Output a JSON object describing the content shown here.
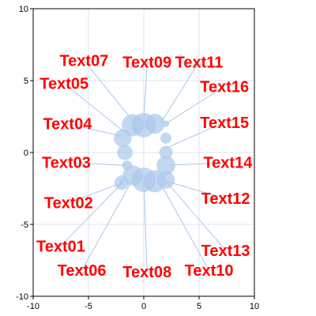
{
  "chart_data": {
    "type": "scatter",
    "title": "",
    "xlabel": "",
    "ylabel": "",
    "xlim": [
      -10,
      10
    ],
    "ylim": [
      -10,
      10
    ],
    "xticks": [
      -10,
      -5,
      0,
      5,
      10
    ],
    "yticks": [
      -10,
      -5,
      0,
      5,
      10
    ],
    "grid": true,
    "colors": {
      "bubble": "#a9c8ea",
      "label": "#ff0000",
      "leader": "#a9c8ea",
      "grid": "#dce6ee"
    },
    "points": [
      {
        "x": -2.0,
        "y": -2.1,
        "size": 0.65
      },
      {
        "x": -1.0,
        "y": -1.6,
        "size": 0.9
      },
      {
        "x": 0.0,
        "y": -1.9,
        "size": 1.1
      },
      {
        "x": 1.0,
        "y": -2.0,
        "size": 1.0
      },
      {
        "x": 2.0,
        "y": -1.9,
        "size": 0.8
      },
      {
        "x": -1.9,
        "y": 1.0,
        "size": 0.8
      },
      {
        "x": -1.0,
        "y": 1.9,
        "size": 1.0
      },
      {
        "x": 0.0,
        "y": 1.9,
        "size": 1.1
      },
      {
        "x": 1.0,
        "y": 2.0,
        "size": 0.9
      },
      {
        "x": 2.0,
        "y": 2.0,
        "size": 0.3
      },
      {
        "x": -1.7,
        "y": 0.0,
        "size": 0.7
      },
      {
        "x": 2.0,
        "y": 0.0,
        "size": 0.6
      },
      {
        "x": -1.5,
        "y": -0.9,
        "size": 0.45
      },
      {
        "x": 2.0,
        "y": -0.9,
        "size": 0.85
      },
      {
        "x": -2.0,
        "y": -2.0,
        "size": 0.2
      },
      {
        "x": 2.0,
        "y": 1.0,
        "size": 0.5
      }
    ],
    "annotations": [
      {
        "text": "Text01",
        "x": -7.5,
        "y": -6.5,
        "px": -1.8,
        "py": -2.0
      },
      {
        "text": "Text02",
        "x": -6.8,
        "y": -3.5,
        "px": -1.9,
        "py": -2.1
      },
      {
        "text": "Text03",
        "x": -7.0,
        "y": -0.7,
        "px": -1.5,
        "py": -0.9
      },
      {
        "text": "Text04",
        "x": -6.9,
        "y": 2.0,
        "px": -1.8,
        "py": 1.1
      },
      {
        "text": "Text05",
        "x": -7.2,
        "y": 4.8,
        "px": -1.9,
        "py": 1.5
      },
      {
        "text": "Text06",
        "x": -5.6,
        "y": -8.2,
        "px": -1.1,
        "py": -2.0
      },
      {
        "text": "Text07",
        "x": -5.4,
        "y": 6.4,
        "px": -0.9,
        "py": 2.1
      },
      {
        "text": "Text08",
        "x": 0.3,
        "y": -8.3,
        "px": 0.0,
        "py": -2.0
      },
      {
        "text": "Text09",
        "x": 0.3,
        "y": 6.3,
        "px": 0.0,
        "py": 2.2
      },
      {
        "text": "Text10",
        "x": 5.9,
        "y": -8.2,
        "px": 1.4,
        "py": -2.0
      },
      {
        "text": "Text11",
        "x": 5.0,
        "y": 6.3,
        "px": 1.5,
        "py": 2.0
      },
      {
        "text": "Text12",
        "x": 7.4,
        "y": -3.2,
        "px": 2.0,
        "py": -2.0
      },
      {
        "text": "Text13",
        "x": 7.4,
        "y": -6.8,
        "px": 2.0,
        "py": -2.0
      },
      {
        "text": "Text14",
        "x": 7.6,
        "y": -0.7,
        "px": 2.0,
        "py": -0.9
      },
      {
        "text": "Text15",
        "x": 7.3,
        "y": 2.1,
        "px": 2.0,
        "py": 0.3
      },
      {
        "text": "Text16",
        "x": 7.3,
        "y": 4.6,
        "px": 2.0,
        "py": 2.0
      }
    ]
  }
}
